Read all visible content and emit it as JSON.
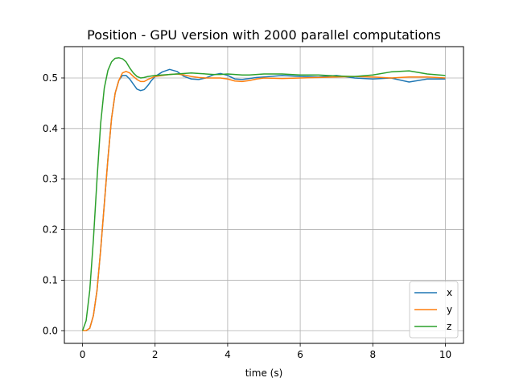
{
  "chart_data": {
    "type": "line",
    "title": "Position - GPU version with 2000 parallel computations",
    "xlabel": "time (s)",
    "ylabel": "",
    "xlim": [
      -0.5,
      10.5
    ],
    "ylim": [
      -0.025,
      0.562
    ],
    "xticks": [
      0,
      2,
      4,
      6,
      8,
      10
    ],
    "yticks": [
      0.0,
      0.1,
      0.2,
      0.3,
      0.4,
      0.5
    ],
    "xtick_labels": [
      "0",
      "2",
      "4",
      "6",
      "8",
      "10"
    ],
    "ytick_labels": [
      "0.0",
      "0.1",
      "0.2",
      "0.3",
      "0.4",
      "0.5"
    ],
    "grid": true,
    "legend_position": "lower-right",
    "colors": {
      "x": "#1f77b4",
      "y": "#ff7f0e",
      "z": "#2ca02c"
    },
    "series": [
      {
        "name": "x",
        "x": [
          0,
          0.1,
          0.2,
          0.3,
          0.4,
          0.5,
          0.6,
          0.7,
          0.8,
          0.9,
          1.0,
          1.1,
          1.2,
          1.3,
          1.4,
          1.5,
          1.6,
          1.7,
          1.8,
          1.9,
          2.0,
          2.2,
          2.4,
          2.6,
          2.8,
          3.0,
          3.2,
          3.4,
          3.6,
          3.8,
          4.0,
          4.2,
          4.4,
          4.6,
          4.8,
          5.0,
          5.5,
          6.0,
          6.5,
          7.0,
          7.5,
          8.0,
          8.5,
          9.0,
          9.5,
          10.0
        ],
        "values": [
          0,
          0.0,
          0.005,
          0.03,
          0.08,
          0.16,
          0.25,
          0.34,
          0.42,
          0.47,
          0.495,
          0.505,
          0.505,
          0.498,
          0.488,
          0.478,
          0.475,
          0.477,
          0.485,
          0.495,
          0.503,
          0.512,
          0.517,
          0.513,
          0.503,
          0.498,
          0.497,
          0.5,
          0.506,
          0.509,
          0.505,
          0.498,
          0.497,
          0.499,
          0.501,
          0.502,
          0.505,
          0.503,
          0.502,
          0.505,
          0.5,
          0.498,
          0.5,
          0.492,
          0.498,
          0.498
        ]
      },
      {
        "name": "y",
        "x": [
          0,
          0.1,
          0.2,
          0.3,
          0.4,
          0.5,
          0.6,
          0.7,
          0.8,
          0.9,
          1.0,
          1.1,
          1.2,
          1.3,
          1.4,
          1.5,
          1.6,
          1.7,
          1.8,
          1.9,
          2.0,
          2.2,
          2.4,
          2.6,
          2.8,
          3.0,
          3.2,
          3.4,
          3.6,
          3.8,
          4.0,
          4.2,
          4.4,
          4.6,
          4.8,
          5.0,
          5.5,
          6.0,
          6.5,
          7.0,
          7.5,
          8.0,
          8.5,
          9.0,
          9.5,
          10.0
        ],
        "values": [
          0,
          0.0,
          0.005,
          0.03,
          0.08,
          0.16,
          0.25,
          0.34,
          0.42,
          0.47,
          0.495,
          0.51,
          0.513,
          0.51,
          0.503,
          0.497,
          0.493,
          0.493,
          0.497,
          0.5,
          0.503,
          0.505,
          0.507,
          0.508,
          0.506,
          0.503,
          0.501,
          0.5,
          0.5,
          0.5,
          0.498,
          0.494,
          0.493,
          0.495,
          0.498,
          0.5,
          0.499,
          0.5,
          0.501,
          0.502,
          0.503,
          0.502,
          0.5,
          0.502,
          0.502,
          0.5
        ]
      },
      {
        "name": "z",
        "x": [
          0,
          0.1,
          0.2,
          0.3,
          0.4,
          0.5,
          0.6,
          0.7,
          0.8,
          0.9,
          1.0,
          1.1,
          1.2,
          1.3,
          1.4,
          1.5,
          1.6,
          1.7,
          1.8,
          1.9,
          2.0,
          2.2,
          2.4,
          2.6,
          2.8,
          3.0,
          3.2,
          3.4,
          3.6,
          3.8,
          4.0,
          4.2,
          4.4,
          4.6,
          4.8,
          5.0,
          5.5,
          6.0,
          6.5,
          7.0,
          7.5,
          8.0,
          8.5,
          9.0,
          9.5,
          10.0
        ],
        "values": [
          0,
          0.02,
          0.08,
          0.18,
          0.3,
          0.41,
          0.48,
          0.515,
          0.532,
          0.539,
          0.54,
          0.538,
          0.532,
          0.52,
          0.51,
          0.503,
          0.5,
          0.501,
          0.503,
          0.504,
          0.505,
          0.506,
          0.507,
          0.508,
          0.509,
          0.51,
          0.509,
          0.508,
          0.507,
          0.507,
          0.508,
          0.507,
          0.506,
          0.506,
          0.507,
          0.508,
          0.508,
          0.506,
          0.506,
          0.504,
          0.503,
          0.506,
          0.512,
          0.514,
          0.508,
          0.505
        ]
      }
    ]
  }
}
